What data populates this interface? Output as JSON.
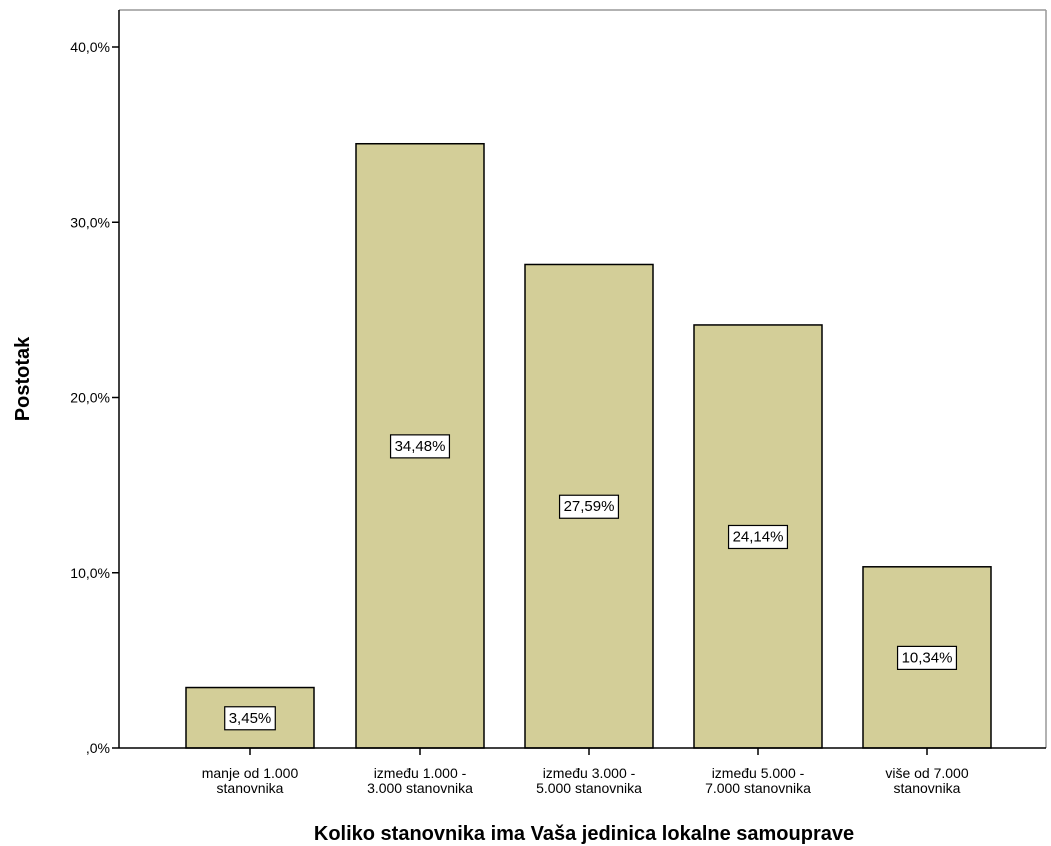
{
  "chart_data": {
    "type": "bar",
    "title": "",
    "xlabel": "Koliko stanovnika ima Vaša jedinica lokalne samouprave",
    "ylabel": "Postotak",
    "categories": [
      [
        "manje od 1.000",
        "stanovnika"
      ],
      [
        "između 1.000 -",
        "3.000 stanovnika"
      ],
      [
        "između 3.000 -",
        "5.000 stanovnika"
      ],
      [
        "između 5.000 -",
        "7.000 stanovnika"
      ],
      [
        "više od 7.000",
        "stanovnika"
      ]
    ],
    "values": [
      3.45,
      34.48,
      27.59,
      24.14,
      10.34
    ],
    "data_labels": [
      "3,45%",
      "34,48%",
      "27,59%",
      "24,14%",
      "10,34%"
    ],
    "ylim": [
      0,
      40
    ],
    "yticks": [
      0,
      10,
      20,
      30,
      40
    ],
    "ytick_labels": [
      ",0%",
      "10,0%",
      "20,0%",
      "30,0%",
      "40,0%"
    ],
    "grid": false,
    "legend": "none",
    "colors": {
      "bar_fill": "#d3ce98",
      "bar_stroke": "#000000",
      "axis": "#000000",
      "frame": "#999999",
      "label_box_fill": "#ffffff"
    }
  }
}
